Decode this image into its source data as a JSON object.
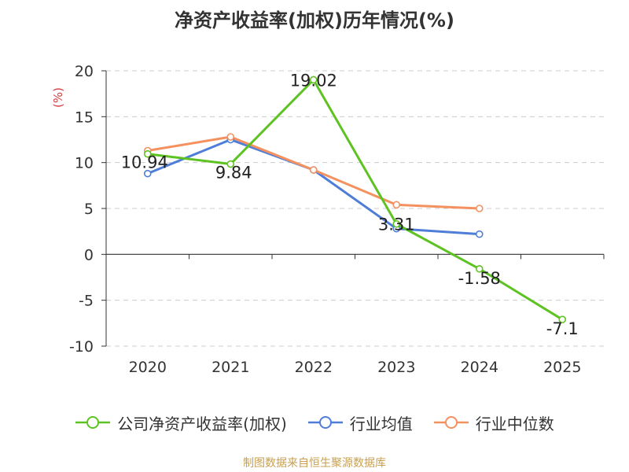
{
  "chart_data": {
    "type": "line",
    "title": "净资产收益率(加权)历年情况(%)",
    "ylabel": "(%)",
    "xlabel": "",
    "categories": [
      "2020",
      "2021",
      "2022",
      "2023",
      "2024",
      "2025"
    ],
    "ylim": [
      -10,
      20
    ],
    "yticks": [
      20,
      15,
      10,
      5,
      0,
      -5,
      -10
    ],
    "grid": true,
    "legend_position": "bottom",
    "series": [
      {
        "name": "公司净资产收益率(加权)",
        "color": "#5ec322",
        "values": [
          10.94,
          9.84,
          19.02,
          3.31,
          -1.58,
          -7.1
        ],
        "labels": [
          "10.94",
          "9.84",
          "19.02",
          "3.31",
          "-1.58",
          "-7.1"
        ]
      },
      {
        "name": "行业均值",
        "color": "#4f7ed8",
        "values": [
          8.8,
          12.5,
          9.2,
          2.8,
          2.2,
          null
        ]
      },
      {
        "name": "行业中位数",
        "color": "#f4915e",
        "values": [
          11.3,
          12.8,
          9.2,
          5.4,
          5.0,
          null
        ]
      }
    ]
  },
  "footer": "制图数据来自恒生聚源数据库"
}
